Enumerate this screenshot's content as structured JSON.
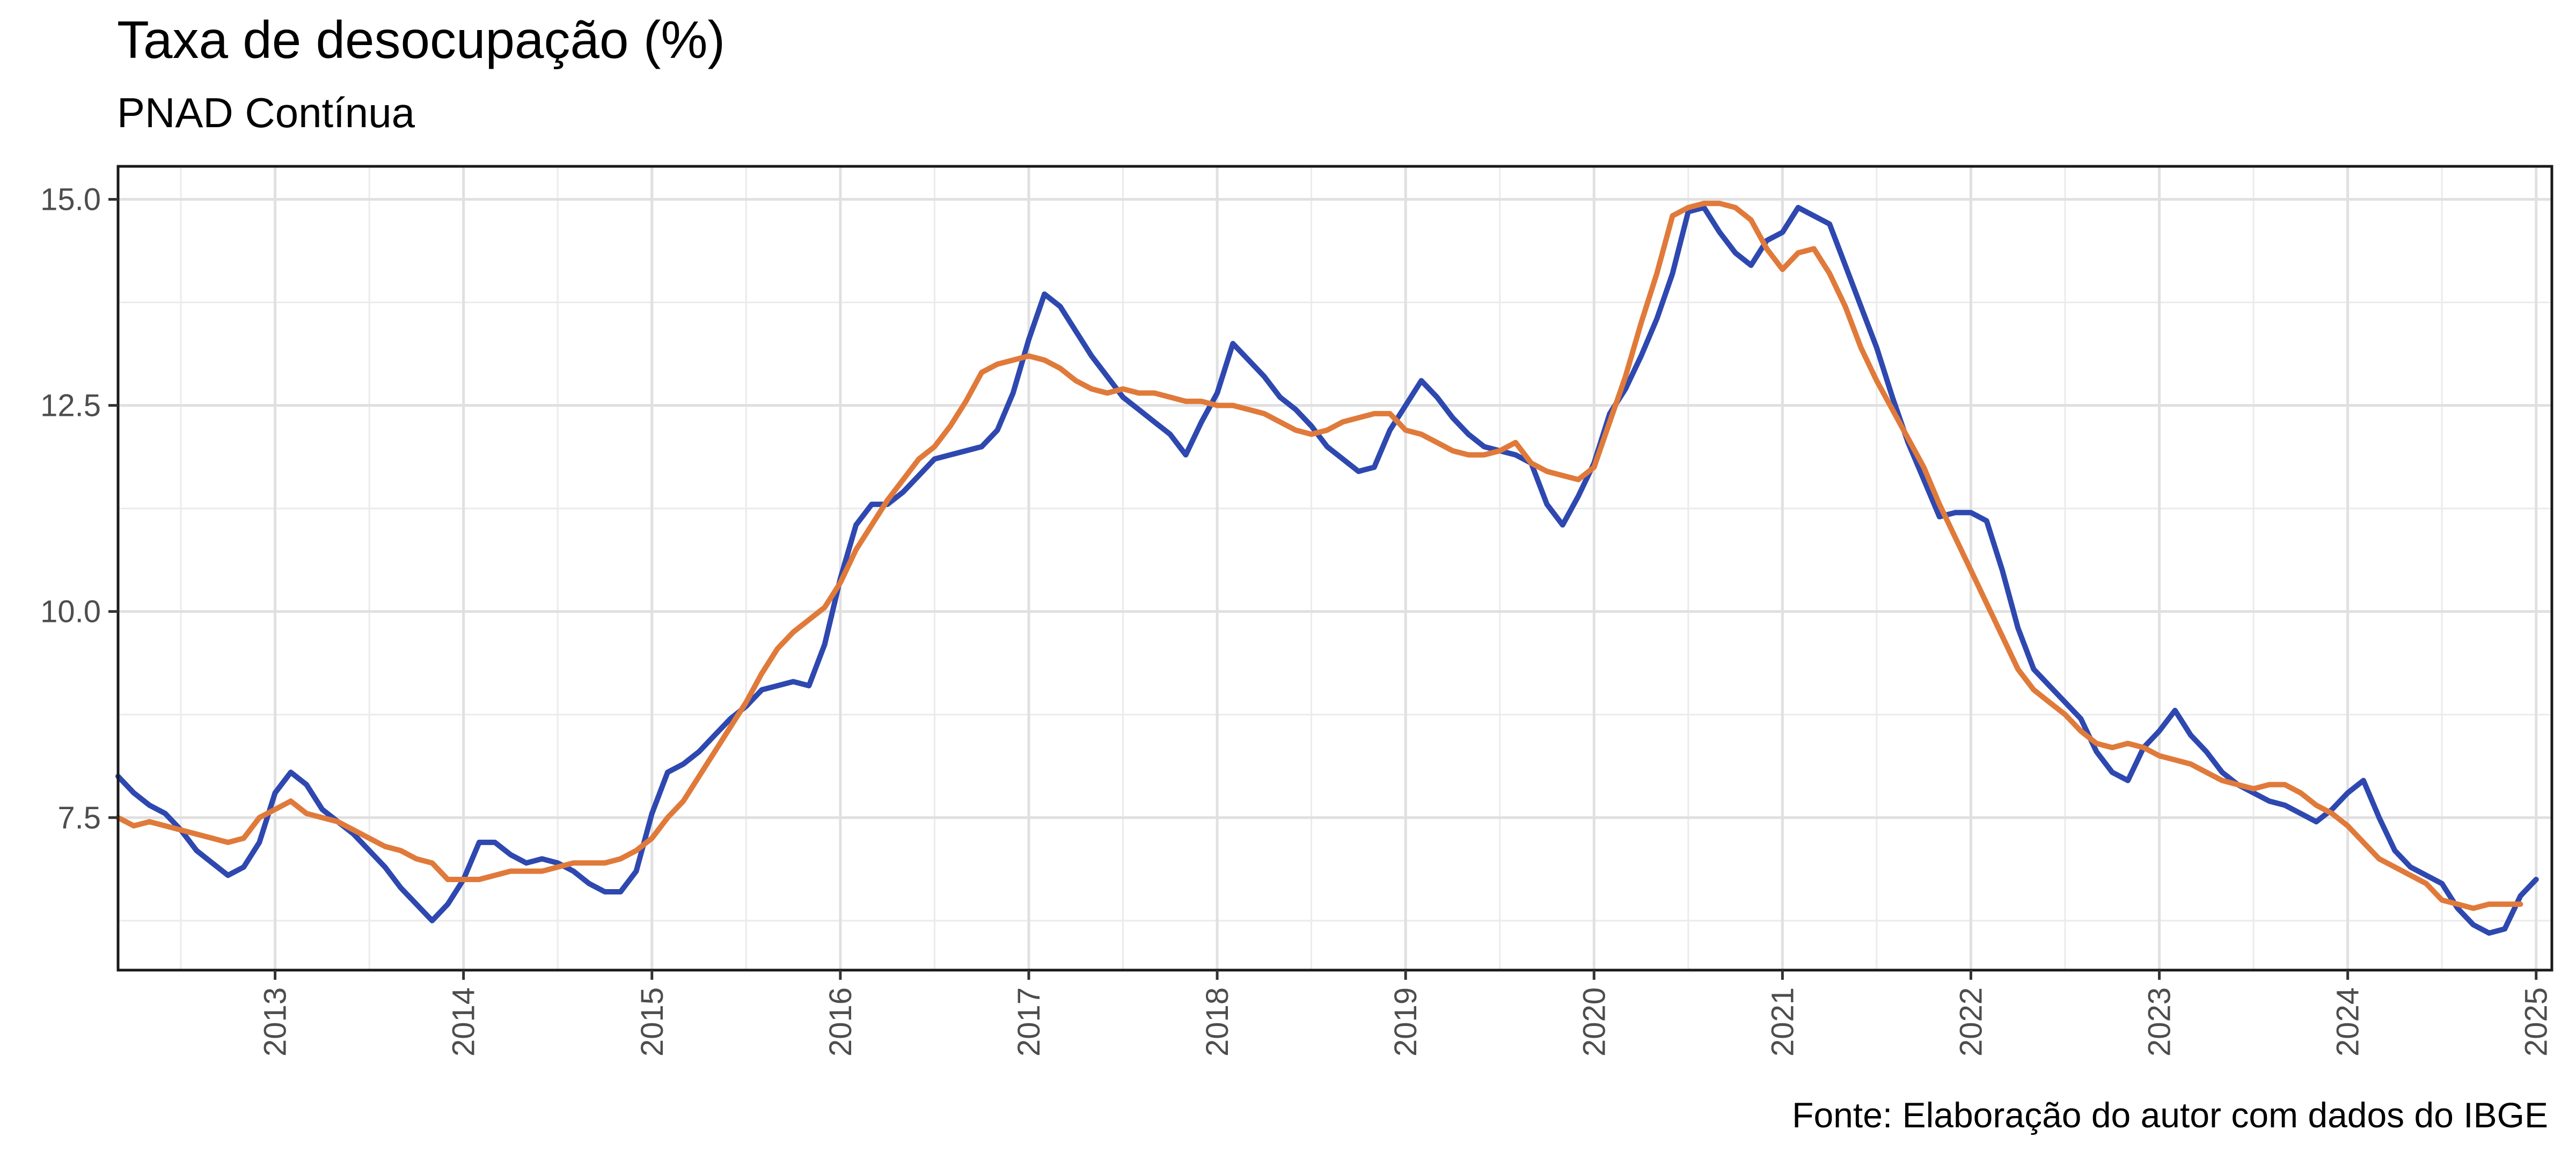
{
  "chart_data": {
    "type": "line",
    "title": "Taxa de desocupação (%)",
    "subtitle": "PNAD Contínua",
    "caption": "Fonte: Elaboração do autor com dados do IBGE",
    "xlabel": "",
    "ylabel": "",
    "x_range": [
      "2012-03",
      "2025-02"
    ],
    "ylim": [
      5.65,
      15.4
    ],
    "y_ticks": [
      7.5,
      10.0,
      12.5,
      15.0
    ],
    "y_tick_labels": [
      "7.5",
      "10.0",
      "12.5",
      "15.0"
    ],
    "x_ticks": [
      "2013",
      "2014",
      "2015",
      "2016",
      "2017",
      "2018",
      "2019",
      "2020",
      "2021",
      "2022",
      "2023",
      "2024",
      "2025"
    ],
    "grid": true,
    "legend": "none",
    "months": [
      "2012-03",
      "2012-04",
      "2012-05",
      "2012-06",
      "2012-07",
      "2012-08",
      "2012-09",
      "2012-10",
      "2012-11",
      "2012-12",
      "2013-01",
      "2013-02",
      "2013-03",
      "2013-04",
      "2013-05",
      "2013-06",
      "2013-07",
      "2013-08",
      "2013-09",
      "2013-10",
      "2013-11",
      "2013-12",
      "2014-01",
      "2014-02",
      "2014-03",
      "2014-04",
      "2014-05",
      "2014-06",
      "2014-07",
      "2014-08",
      "2014-09",
      "2014-10",
      "2014-11",
      "2014-12",
      "2015-01",
      "2015-02",
      "2015-03",
      "2015-04",
      "2015-05",
      "2015-06",
      "2015-07",
      "2015-08",
      "2015-09",
      "2015-10",
      "2015-11",
      "2015-12",
      "2016-01",
      "2016-02",
      "2016-03",
      "2016-04",
      "2016-05",
      "2016-06",
      "2016-07",
      "2016-08",
      "2016-09",
      "2016-10",
      "2016-11",
      "2016-12",
      "2017-01",
      "2017-02",
      "2017-03",
      "2017-04",
      "2017-05",
      "2017-06",
      "2017-07",
      "2017-08",
      "2017-09",
      "2017-10",
      "2017-11",
      "2017-12",
      "2018-01",
      "2018-02",
      "2018-03",
      "2018-04",
      "2018-05",
      "2018-06",
      "2018-07",
      "2018-08",
      "2018-09",
      "2018-10",
      "2018-11",
      "2018-12",
      "2019-01",
      "2019-02",
      "2019-03",
      "2019-04",
      "2019-05",
      "2019-06",
      "2019-07",
      "2019-08",
      "2019-09",
      "2019-10",
      "2019-11",
      "2019-12",
      "2020-01",
      "2020-02",
      "2020-03",
      "2020-04",
      "2020-05",
      "2020-06",
      "2020-07",
      "2020-08",
      "2020-09",
      "2020-10",
      "2020-11",
      "2020-12",
      "2021-01",
      "2021-02",
      "2021-03",
      "2021-04",
      "2021-05",
      "2021-06",
      "2021-07",
      "2021-08",
      "2021-09",
      "2021-10",
      "2021-11",
      "2021-12",
      "2022-01",
      "2022-02",
      "2022-03",
      "2022-04",
      "2022-05",
      "2022-06",
      "2022-07",
      "2022-08",
      "2022-09",
      "2022-10",
      "2022-11",
      "2022-12",
      "2023-01",
      "2023-02",
      "2023-03",
      "2023-04",
      "2023-05",
      "2023-06",
      "2023-07",
      "2023-08",
      "2023-09",
      "2023-10",
      "2023-11",
      "2023-12",
      "2024-01",
      "2024-02",
      "2024-03",
      "2024-04",
      "2024-05",
      "2024-06",
      "2024-07",
      "2024-08",
      "2024-09",
      "2024-10",
      "2024-11",
      "2024-12",
      "2025-01",
      "2025-02"
    ],
    "series": [
      {
        "color": "#2e48b0",
        "values": [
          8.0,
          7.8,
          7.65,
          7.55,
          7.35,
          7.1,
          6.95,
          6.8,
          6.9,
          7.2,
          7.8,
          8.05,
          7.9,
          7.6,
          7.45,
          7.3,
          7.1,
          6.9,
          6.65,
          6.45,
          6.25,
          6.45,
          6.75,
          7.2,
          7.2,
          7.05,
          6.95,
          7.0,
          6.95,
          6.85,
          6.7,
          6.6,
          6.6,
          6.85,
          7.55,
          8.05,
          8.15,
          8.3,
          8.5,
          8.7,
          8.85,
          9.05,
          9.1,
          9.15,
          9.1,
          9.6,
          10.4,
          11.05,
          11.3,
          11.3,
          11.45,
          11.65,
          11.85,
          11.9,
          11.95,
          12.0,
          12.2,
          12.65,
          13.3,
          13.85,
          13.7,
          13.4,
          13.1,
          12.85,
          12.6,
          12.45,
          12.3,
          12.15,
          11.9,
          12.3,
          12.65,
          13.25,
          13.05,
          12.85,
          12.6,
          12.45,
          12.25,
          12.0,
          11.85,
          11.7,
          11.75,
          12.2,
          12.5,
          12.8,
          12.6,
          12.35,
          12.15,
          12.0,
          11.95,
          11.9,
          11.8,
          11.3,
          11.05,
          11.4,
          11.8,
          12.4,
          12.7,
          13.1,
          13.55,
          14.1,
          14.85,
          14.9,
          14.6,
          14.35,
          14.2,
          14.5,
          14.6,
          14.9,
          14.8,
          14.7,
          14.2,
          13.7,
          13.2,
          12.6,
          12.05,
          11.6,
          11.15,
          11.2,
          11.2,
          11.1,
          10.5,
          9.8,
          9.3,
          9.1,
          8.9,
          8.7,
          8.3,
          8.05,
          7.95,
          8.35,
          8.55,
          8.8,
          8.5,
          8.3,
          8.05,
          7.9,
          7.8,
          7.7,
          7.65,
          7.55,
          7.45,
          7.6,
          7.8,
          7.95,
          7.5,
          7.1,
          6.9,
          6.8,
          6.7,
          6.4,
          6.2,
          6.1,
          6.15,
          6.55,
          6.75
        ]
      },
      {
        "color": "#e07a3a",
        "values": [
          7.5,
          7.4,
          7.45,
          7.4,
          7.35,
          7.3,
          7.25,
          7.2,
          7.25,
          7.5,
          7.6,
          7.7,
          7.55,
          7.5,
          7.45,
          7.35,
          7.25,
          7.15,
          7.1,
          7.0,
          6.95,
          6.75,
          6.75,
          6.75,
          6.8,
          6.85,
          6.85,
          6.85,
          6.9,
          6.95,
          6.95,
          6.95,
          7.0,
          7.1,
          7.25,
          7.5,
          7.7,
          8.0,
          8.3,
          8.6,
          8.9,
          9.25,
          9.55,
          9.75,
          9.9,
          10.05,
          10.35,
          10.75,
          11.05,
          11.35,
          11.6,
          11.85,
          12.0,
          12.25,
          12.55,
          12.9,
          13.0,
          13.05,
          13.1,
          13.05,
          12.95,
          12.8,
          12.7,
          12.65,
          12.7,
          12.65,
          12.65,
          12.6,
          12.55,
          12.55,
          12.5,
          12.5,
          12.45,
          12.4,
          12.3,
          12.2,
          12.15,
          12.2,
          12.3,
          12.35,
          12.4,
          12.4,
          12.2,
          12.15,
          12.05,
          11.95,
          11.9,
          11.9,
          11.95,
          12.05,
          11.8,
          11.7,
          11.65,
          11.6,
          11.75,
          12.3,
          12.85,
          13.5,
          14.1,
          14.8,
          14.9,
          14.95,
          14.95,
          14.9,
          14.75,
          14.4,
          14.15,
          14.35,
          14.4,
          14.1,
          13.7,
          13.2,
          12.8,
          12.45,
          12.1,
          11.75,
          11.3,
          10.9,
          10.5,
          10.1,
          9.7,
          9.3,
          9.05,
          8.9,
          8.75,
          8.55,
          8.4,
          8.35,
          8.4,
          8.35,
          8.25,
          8.2,
          8.15,
          8.05,
          7.95,
          7.9,
          7.85,
          7.9,
          7.9,
          7.8,
          7.65,
          7.55,
          7.4,
          7.2,
          7.0,
          6.9,
          6.8,
          6.7,
          6.5,
          6.45,
          6.4,
          6.45,
          6.45,
          6.45
        ]
      }
    ]
  }
}
